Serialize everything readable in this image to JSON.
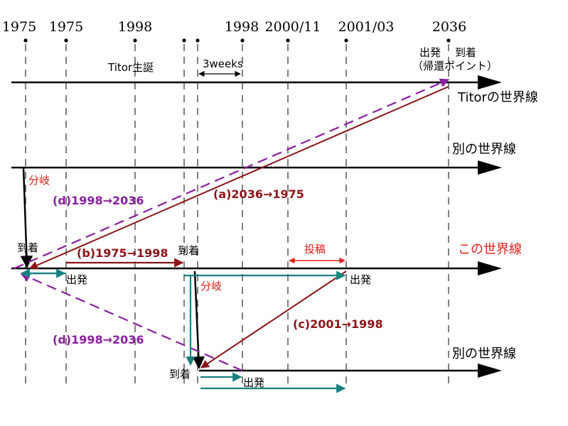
{
  "colors": {
    "black": "#000000",
    "dark_red": "#8b1418",
    "bright_red": "#e0201a",
    "purple": "#8a1fa0",
    "teal": "#18807e"
  },
  "years": [
    "1975",
    "1975",
    "1998",
    "1998",
    "2000/11",
    "2001/03",
    "2036"
  ],
  "labels": {
    "titor_birth": "Titor生誕",
    "three_weeks": "3weeks",
    "depart_top": "出発",
    "arrive_top": "到着",
    "return_point": "（帰還ポイント）",
    "branch_1": "分岐",
    "branch_2": "分岐",
    "arrive_1": "到着",
    "arrive_2": "到着",
    "arrive_3": "到着",
    "depart_1": "出発",
    "depart_2": "出発",
    "depart_3": "出発",
    "posting": "投稿"
  },
  "worldlines": {
    "titor": "Titorの世界線",
    "other_1": "別の世界線",
    "this": "この世界線",
    "other_2": "別の世界線"
  },
  "trips": {
    "a": "(a)2036→1975",
    "b": "(b)1975→1998",
    "c": "(c)2001→1998",
    "d1": "(d)1998→2036",
    "d2": "(d)1998→2036"
  }
}
